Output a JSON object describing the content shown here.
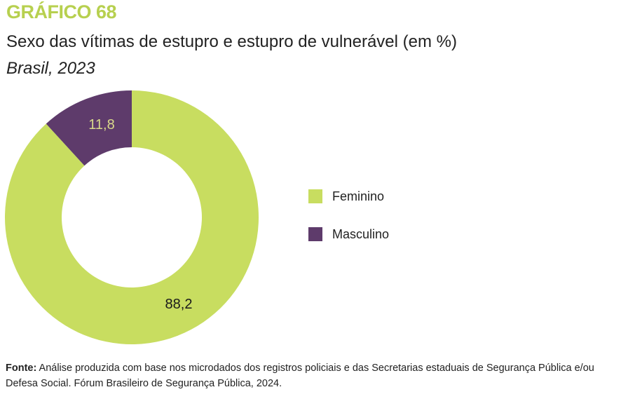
{
  "header": {
    "figure_label": "GRÁFICO 68",
    "title": "Sexo das vítimas de estupro e estupro de vulnerável (em %)",
    "subtitle": "Brasil, 2023"
  },
  "chart_data": {
    "type": "pie",
    "donut": true,
    "categories": [
      "Feminino",
      "Masculino"
    ],
    "values": [
      88.2,
      11.8
    ],
    "labels": [
      "88,2",
      "11,8"
    ],
    "colors": [
      "#c8dd60",
      "#5e3b6b"
    ],
    "label_colors": [
      "#1a1a1a",
      "#d9d98a"
    ],
    "legend_position": "right"
  },
  "source": {
    "label": "Fonte:",
    "text": "Análise produzida com base nos microdados dos registros policiais e das Secretarias estaduais de Segurança Pública e/ou Defesa Social. Fórum Brasileiro de Segurança Pública, 2024."
  }
}
